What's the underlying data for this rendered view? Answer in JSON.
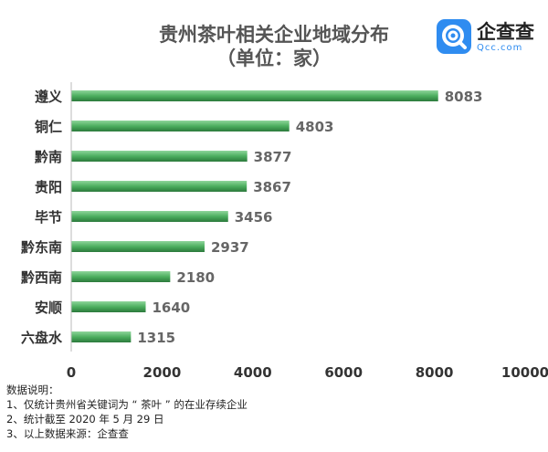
{
  "chart_data": {
    "type": "bar",
    "orientation": "horizontal",
    "title_lines": [
      "贵州茶叶相关企业地域分布",
      "（单位：家）"
    ],
    "categories": [
      "遵义",
      "铜仁",
      "黔南",
      "贵阳",
      "毕节",
      "黔东南",
      "黔西南",
      "安顺",
      "六盘水"
    ],
    "values": [
      8083,
      4803,
      3877,
      3867,
      3456,
      2937,
      2180,
      1640,
      1315
    ],
    "value_labels": [
      "8083",
      "4803",
      "3877",
      "3867",
      "3456",
      "2937",
      "2180",
      "1640",
      "1315"
    ],
    "xlim": [
      0,
      10000
    ],
    "x_ticks": [
      0,
      2000,
      4000,
      6000,
      8000,
      10000
    ],
    "x_tick_labels": [
      "0",
      "2000",
      "4000",
      "6000",
      "8000",
      "10000"
    ],
    "grid": false,
    "bar_color_top": "#8fd59b",
    "bar_color_mid": "#4cae5f",
    "bar_color_bottom": "#2c7a3c"
  },
  "logo": {
    "name": "企查查",
    "sub": "Qcc.com",
    "color": "#2f8cf0"
  },
  "notes": {
    "heading": "数据说明：",
    "items": [
      "1、仅统计贵州省关键词为 “ 茶叶 ” 的在业存续企业",
      "2、统计截至 2020 年 5 月 29 日",
      "3、以上数据来源：企查查"
    ]
  }
}
